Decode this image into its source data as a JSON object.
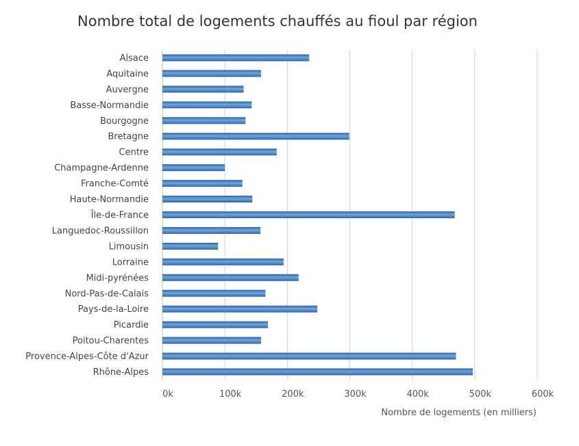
{
  "chart_data": {
    "type": "bar",
    "orientation": "horizontal",
    "title": "Nombre total de logements chauffés au fioul par région",
    "xlabel": "Nombre de logements (en milliers)",
    "ylabel": "",
    "xlim": [
      0,
      600
    ],
    "grid": true,
    "legend": "none",
    "bar_color": "#3f7fc4",
    "ticks": [
      {
        "value": 0,
        "label": "0k"
      },
      {
        "value": 100,
        "label": "100k"
      },
      {
        "value": 200,
        "label": "200k"
      },
      {
        "value": 300,
        "label": "300k"
      },
      {
        "value": 400,
        "label": "400k"
      },
      {
        "value": 500,
        "label": "500k"
      },
      {
        "value": 600,
        "label": "600k"
      }
    ],
    "categories": [
      "Alsace",
      "Aquitaine",
      "Auvergne",
      "Basse-Normandie",
      "Bourgogne",
      "Bretagne",
      "Centre",
      "Champagne-Ardenne",
      "Franche-Comté",
      "Haute-Normandie",
      "Île-de-France",
      "Languedoc-Roussillon",
      "Limousin",
      "Lorraine",
      "Midi-pyrénées",
      "Nord-Pas-de-Calais",
      "Pays-de-la-Loire",
      "Picardie",
      "Poitou-Charentes",
      "Provence-Alpes-Côte d'Azur",
      "Rhône-Alpes"
    ],
    "values": [
      235,
      158,
      130,
      143,
      133,
      299,
      183,
      100,
      128,
      144,
      468,
      157,
      89,
      194,
      218,
      165,
      248,
      169,
      158,
      470,
      497
    ]
  }
}
